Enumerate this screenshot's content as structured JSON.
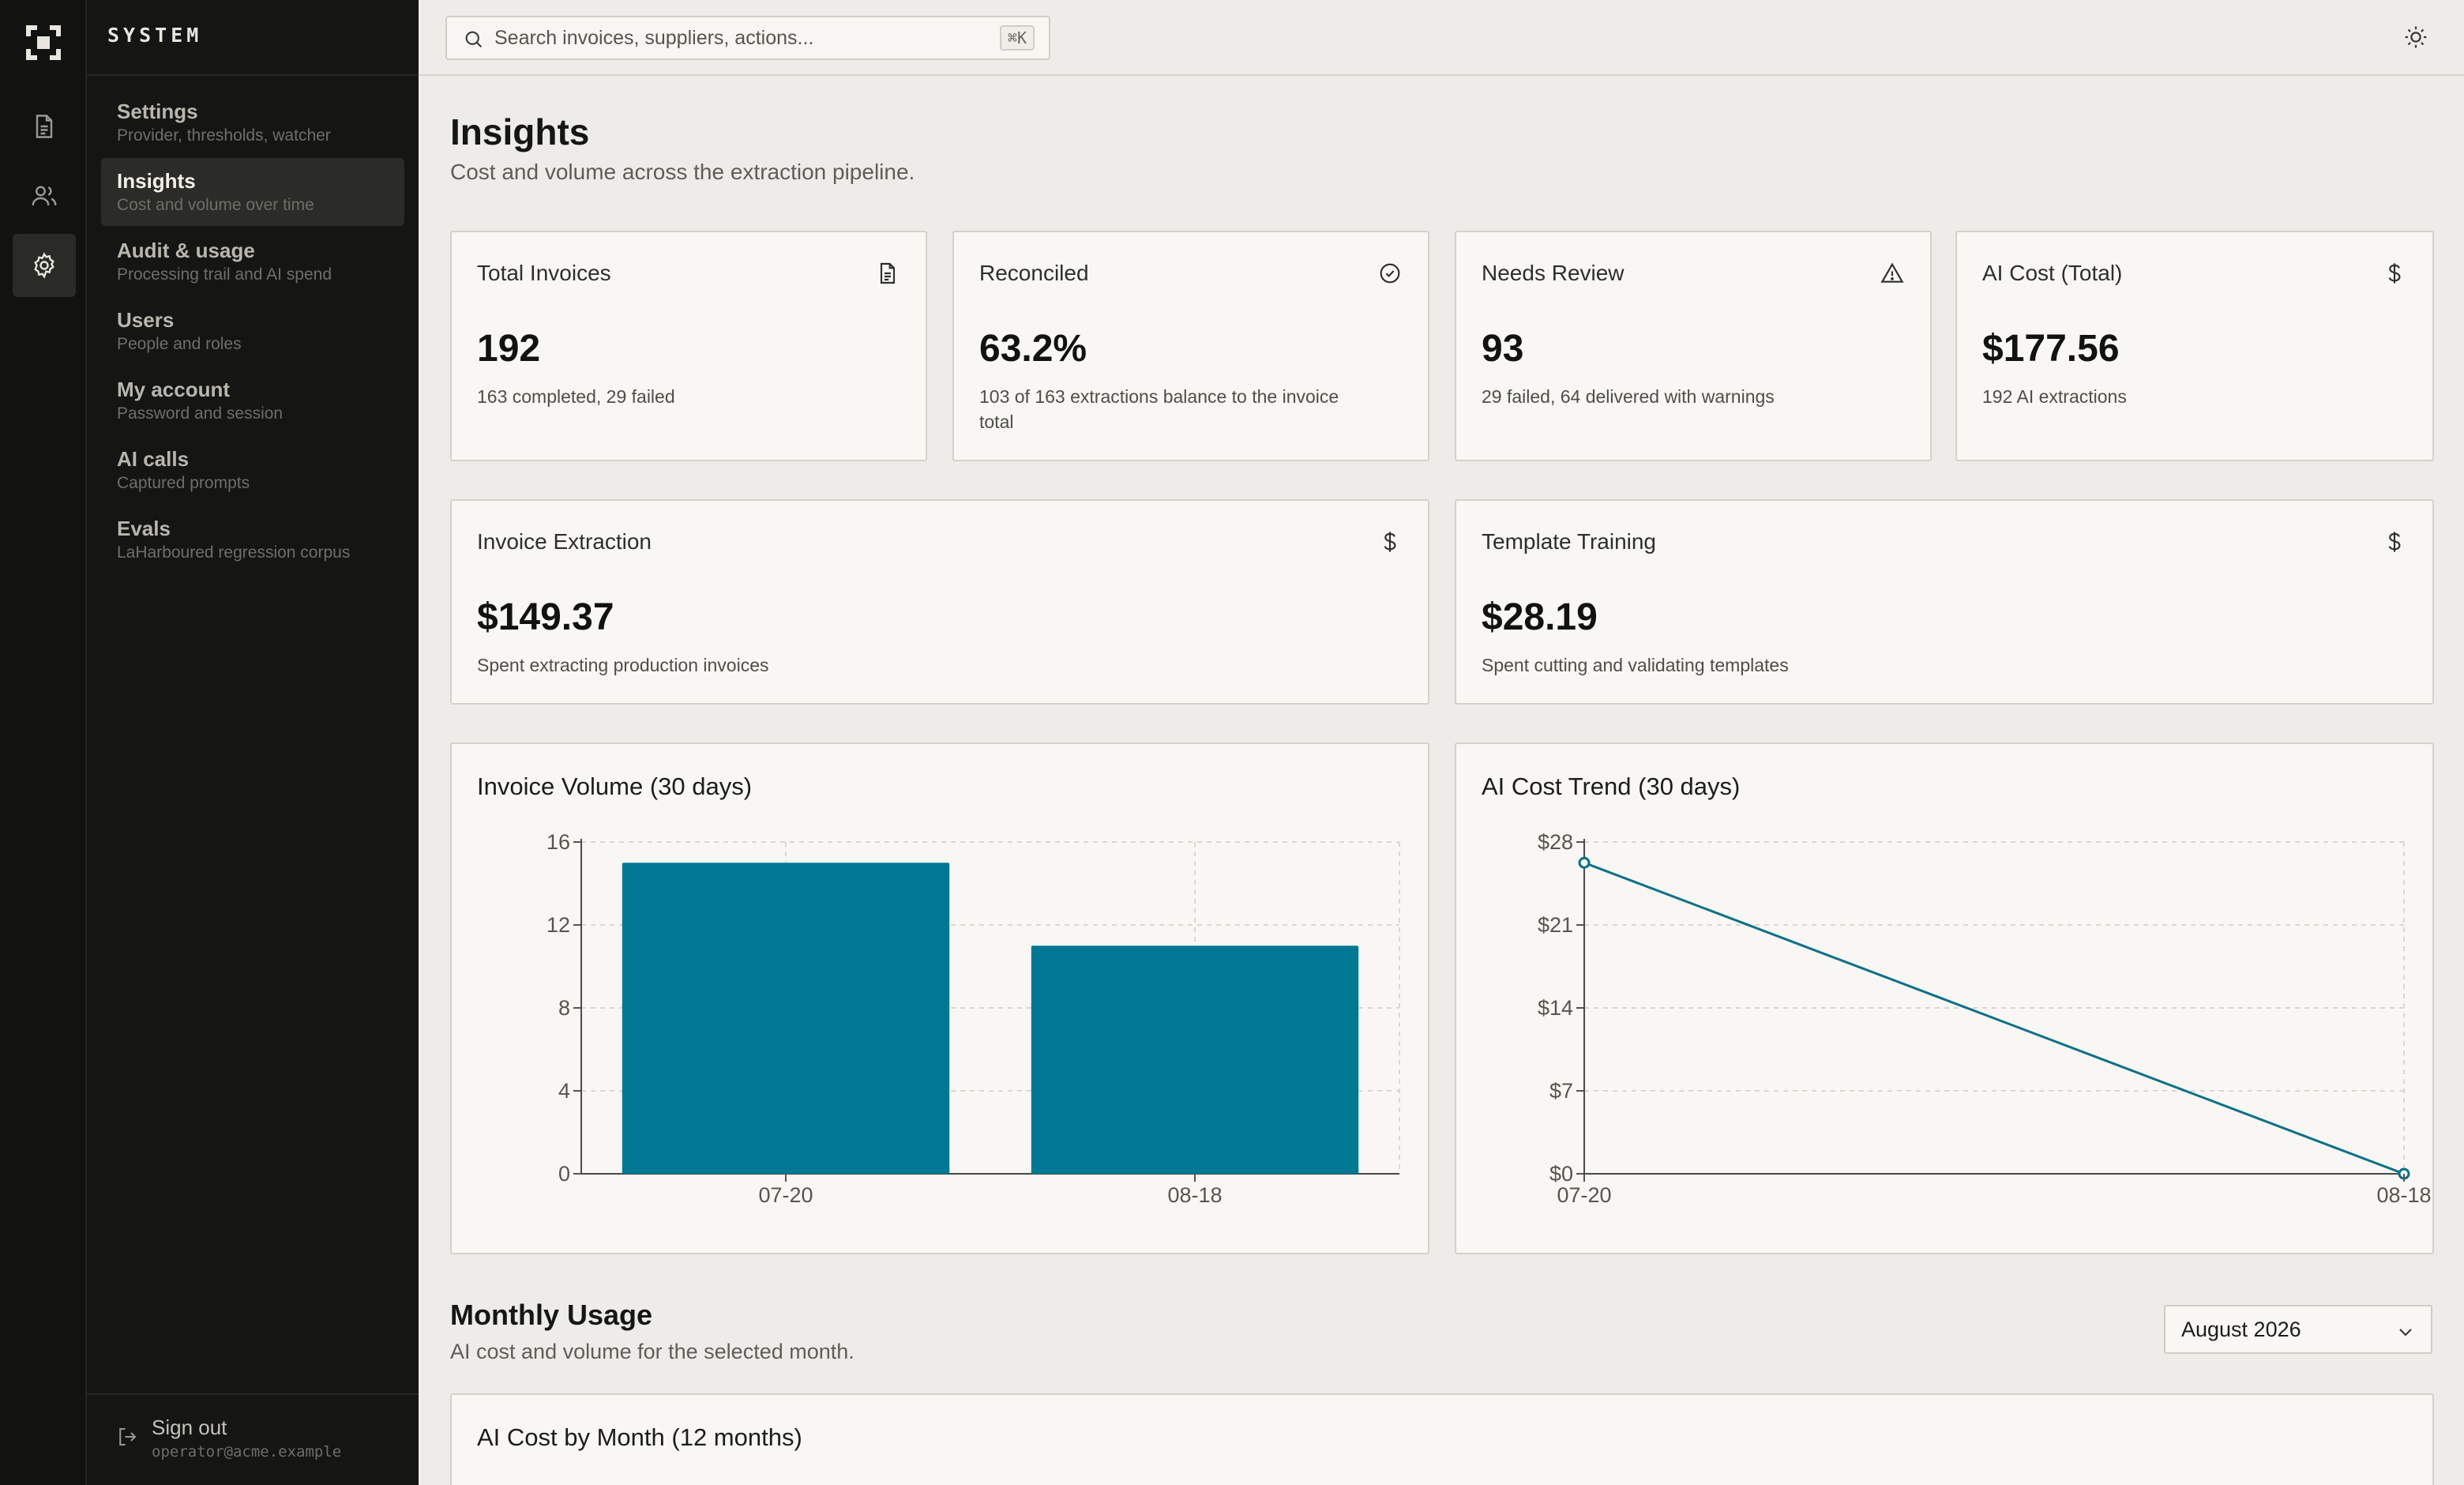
{
  "app": {
    "brand": "SYSTEM"
  },
  "rail": {
    "items": [
      "documents-icon",
      "users-icon",
      "settings-icon"
    ]
  },
  "sidebar": {
    "items": [
      {
        "label": "Settings",
        "sub": "Provider, thresholds, watcher"
      },
      {
        "label": "Insights",
        "sub": "Cost and volume over time"
      },
      {
        "label": "Audit & usage",
        "sub": "Processing trail and AI spend"
      },
      {
        "label": "Users",
        "sub": "People and roles"
      },
      {
        "label": "My account",
        "sub": "Password and session"
      },
      {
        "label": "AI calls",
        "sub": "Captured prompts"
      },
      {
        "label": "Evals",
        "sub": "LaHarboured regression corpus"
      }
    ],
    "active_index": 1,
    "signout_label": "Sign out",
    "signout_email": "operator@acme.example"
  },
  "search": {
    "placeholder": "Search invoices, suppliers, actions...",
    "shortcut": "⌘K"
  },
  "page": {
    "title": "Insights",
    "subtitle": "Cost and volume across the extraction pipeline."
  },
  "stats": [
    {
      "label": "Total Invoices",
      "value": "192",
      "note": "163 completed, 29 failed",
      "icon": "document-icon"
    },
    {
      "label": "Reconciled",
      "value": "63.2%",
      "note": "103 of 163 extractions balance to the invoice total",
      "icon": "check-circle-icon"
    },
    {
      "label": "Needs Review",
      "value": "93",
      "note": "29 failed, 64 delivered with warnings",
      "icon": "warning-icon"
    },
    {
      "label": "AI Cost (Total)",
      "value": "$177.56",
      "note": "192 AI extractions",
      "icon": "dollar-icon"
    }
  ],
  "costs": [
    {
      "label": "Invoice Extraction",
      "value": "$149.37",
      "note": "Spent extracting production invoices",
      "icon": "dollar-icon"
    },
    {
      "label": "Template Training",
      "value": "$28.19",
      "note": "Spent cutting and validating templates",
      "icon": "dollar-icon"
    }
  ],
  "chart_data": [
    {
      "type": "bar",
      "title": "Invoice Volume (30 days)",
      "categories": [
        "07-20",
        "08-18"
      ],
      "values": [
        15,
        11
      ],
      "ylim": [
        0,
        16
      ],
      "yticks": [
        0,
        4,
        8,
        12,
        16
      ],
      "ytick_labels": [
        "0",
        "4",
        "8",
        "12",
        "16"
      ],
      "grid": true,
      "color": "#007893"
    },
    {
      "type": "line",
      "title": "AI Cost Trend (30 days)",
      "x": [
        "07-20",
        "08-18"
      ],
      "values": [
        26.25,
        0
      ],
      "ylim": [
        0,
        28
      ],
      "yticks": [
        0,
        7,
        14,
        21,
        28
      ],
      "ytick_labels": [
        "$0",
        "$7",
        "$14",
        "$21",
        "$28"
      ],
      "grid": true,
      "color": "#0e6f8a"
    }
  ],
  "monthly": {
    "title": "Monthly Usage",
    "subtitle": "AI cost and volume for the selected month.",
    "selected_month": "August 2026",
    "chart_title": "AI Cost by Month (12 months)"
  }
}
